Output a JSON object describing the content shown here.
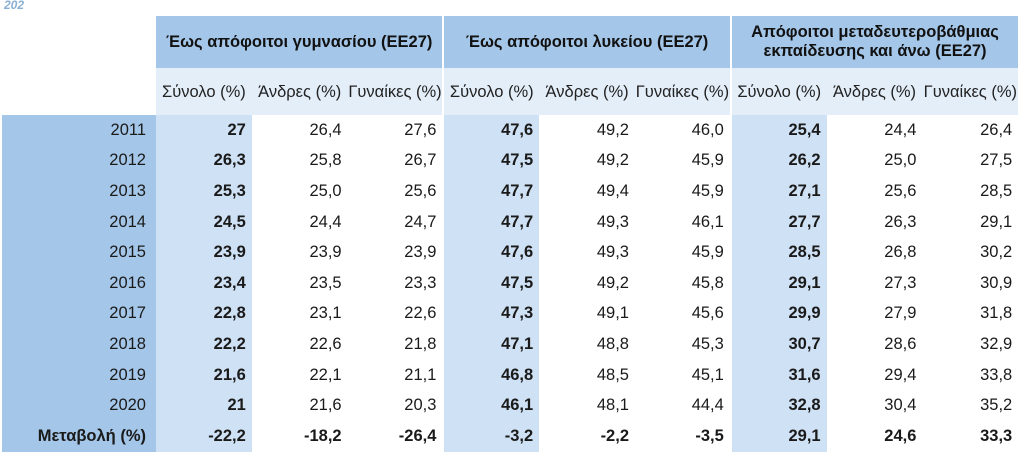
{
  "top_label": "202",
  "groups": [
    {
      "title": "Έως απόφοιτοι γυμνασίου (ΕΕ27)"
    },
    {
      "title": "Έως απόφοιτοι λυκείου (ΕΕ27)"
    },
    {
      "title": "Απόφοιτοι μεταδευτεροβάθμιας εκπαίδευσης και άνω (ΕΕ27)"
    }
  ],
  "subheaders": [
    "Σύνολο (%)",
    "Άνδρες (%)",
    "Γυναίκες (%)"
  ],
  "rows": [
    {
      "label": "2011",
      "values": [
        "27",
        "26,4",
        "27,6",
        "47,6",
        "49,2",
        "46,0",
        "25,4",
        "24,4",
        "26,4"
      ]
    },
    {
      "label": "2012",
      "values": [
        "26,3",
        "25,8",
        "26,7",
        "47,5",
        "49,2",
        "45,9",
        "26,2",
        "25,0",
        "27,5"
      ]
    },
    {
      "label": "2013",
      "values": [
        "25,3",
        "25,0",
        "25,6",
        "47,7",
        "49,4",
        "45,9",
        "27,1",
        "25,6",
        "28,5"
      ]
    },
    {
      "label": "2014",
      "values": [
        "24,5",
        "24,4",
        "24,7",
        "47,7",
        "49,3",
        "46,1",
        "27,7",
        "26,3",
        "29,1"
      ]
    },
    {
      "label": "2015",
      "values": [
        "23,9",
        "23,9",
        "23,9",
        "47,6",
        "49,3",
        "45,9",
        "28,5",
        "26,8",
        "30,2"
      ]
    },
    {
      "label": "2016",
      "values": [
        "23,4",
        "23,5",
        "23,3",
        "47,5",
        "49,2",
        "45,8",
        "29,1",
        "27,3",
        "30,9"
      ]
    },
    {
      "label": "2017",
      "values": [
        "22,8",
        "23,1",
        "22,6",
        "47,3",
        "49,1",
        "45,6",
        "29,9",
        "27,9",
        "31,8"
      ]
    },
    {
      "label": "2018",
      "values": [
        "22,2",
        "22,6",
        "21,8",
        "47,1",
        "48,8",
        "45,3",
        "30,7",
        "28,6",
        "32,9"
      ]
    },
    {
      "label": "2019",
      "values": [
        "21,6",
        "22,1",
        "21,1",
        "46,8",
        "48,5",
        "45,1",
        "31,6",
        "29,4",
        "33,8"
      ]
    },
    {
      "label": "2020",
      "values": [
        "21",
        "21,6",
        "20,3",
        "46,1",
        "48,1",
        "44,4",
        "32,8",
        "30,4",
        "35,2"
      ]
    }
  ],
  "summary": {
    "label": "Μεταβολή (%)",
    "values": [
      "-22,2",
      "-18,2",
      "-26,4",
      "-3,2",
      "-2,2",
      "-3,5",
      "29,1",
      "24,6",
      "33,3"
    ]
  }
}
